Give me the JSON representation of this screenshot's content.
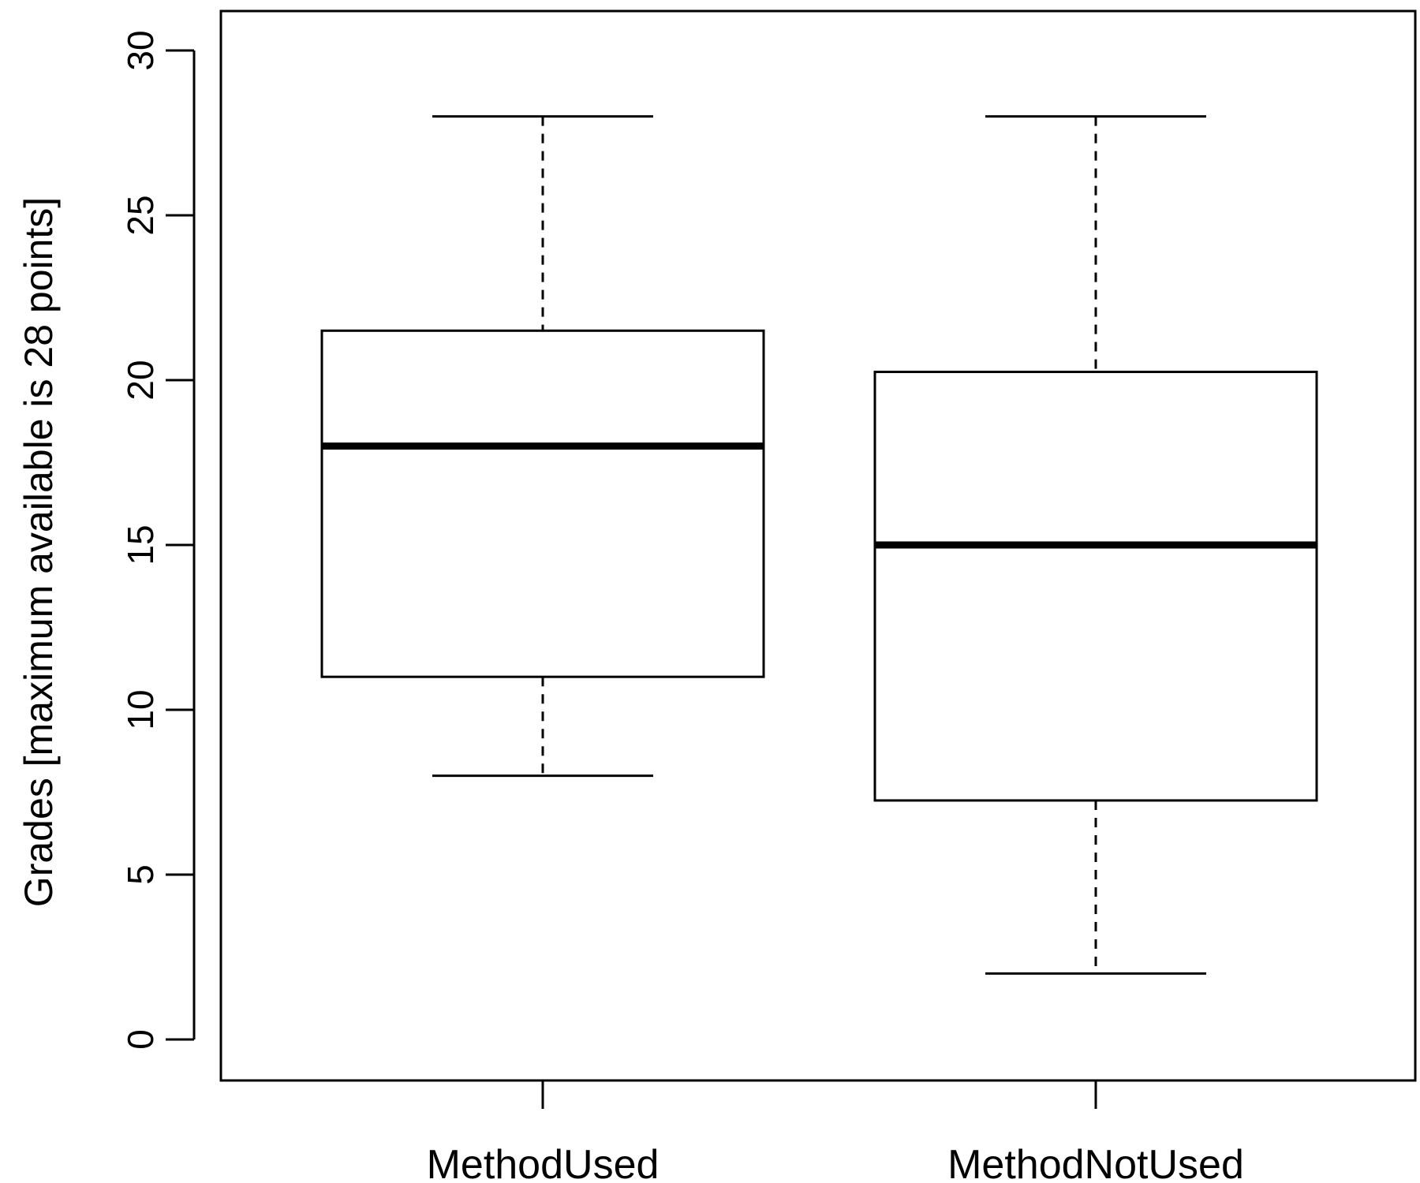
{
  "chart_data": {
    "type": "boxplot",
    "title": "",
    "xlabel": "",
    "ylabel": "Grades [maximum available is 28 points]",
    "ylim": [
      -1.2,
      31.2
    ],
    "yticks": [
      0,
      5,
      10,
      15,
      20,
      25,
      30
    ],
    "categories": [
      "MethodUsed",
      "MethodNotUsed"
    ],
    "boxes": [
      {
        "name": "MethodUsed",
        "min": 8,
        "q1": 11,
        "median": 18,
        "q3": 21.5,
        "max": 28
      },
      {
        "name": "MethodNotUsed",
        "min": 2,
        "q1": 7.25,
        "median": 15,
        "q3": 20.25,
        "max": 28
      }
    ],
    "grid": false,
    "legend": "none",
    "colors": {
      "stroke": "#000000",
      "fill": "#ffffff"
    }
  }
}
